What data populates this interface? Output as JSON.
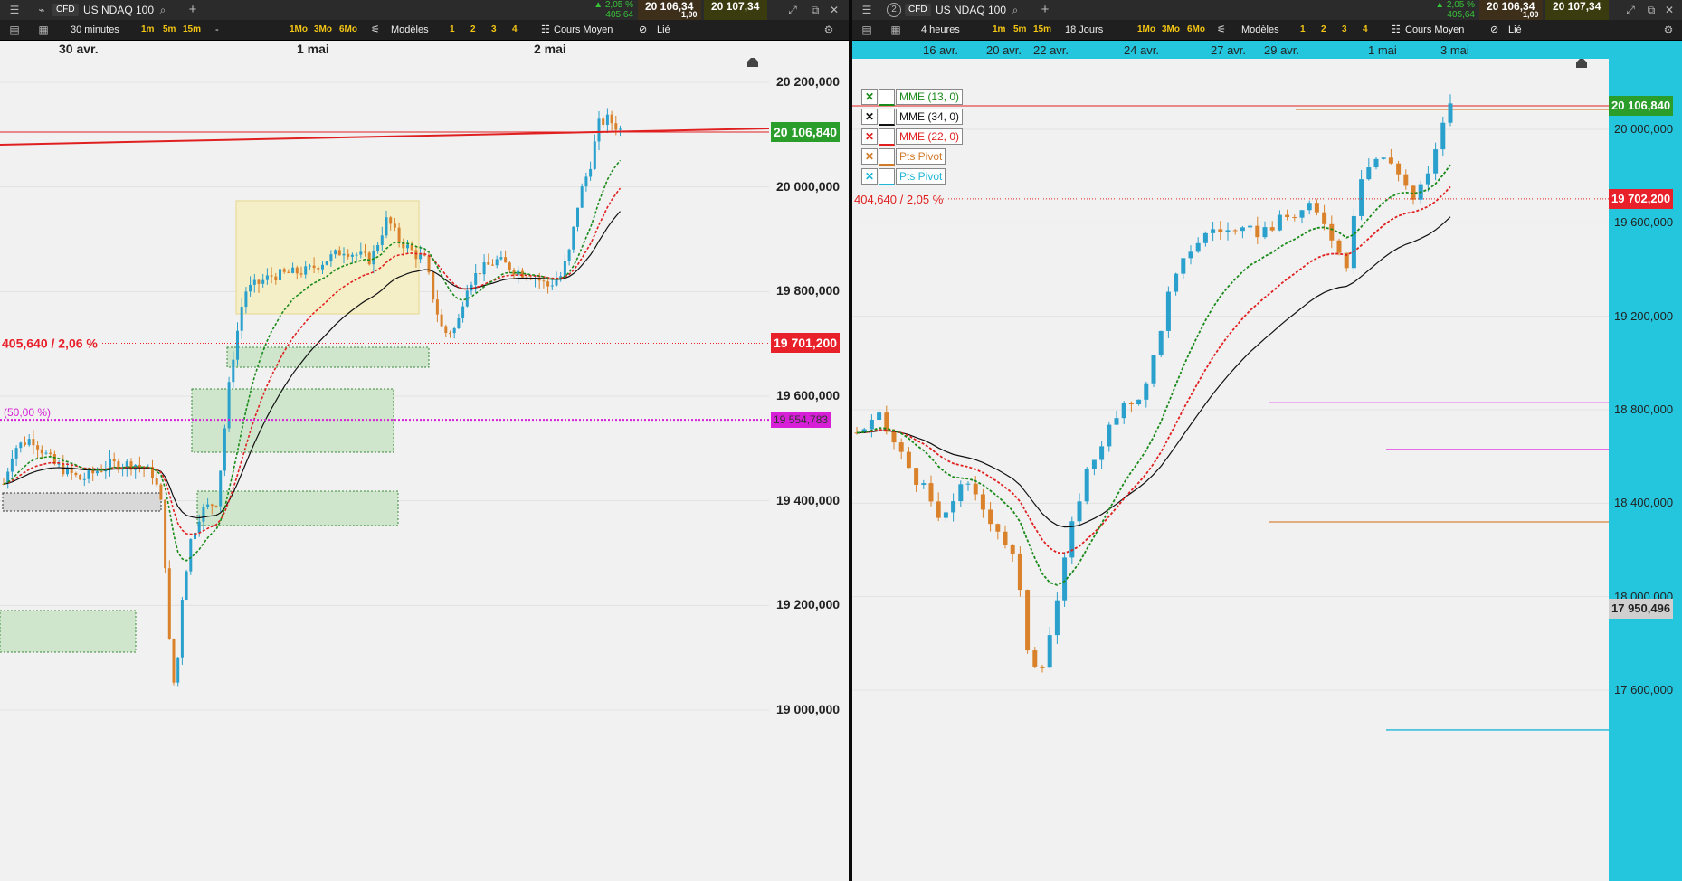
{
  "left": {
    "instrument": {
      "type_badge": "CFD",
      "name": "US NDAQ 100"
    },
    "quote": {
      "change_pct": "▲ 2,05 %",
      "change_val": "405,64",
      "bid": "20 106,34",
      "spread": "1,00",
      "ask": "20 107,34"
    },
    "toolbar": {
      "timeframe": "30 minutes",
      "intervals": [
        "1m",
        "5m",
        "15m"
      ],
      "dash": "-",
      "ranges": [
        "1Mo",
        "3Mo",
        "6Mo"
      ],
      "models": "Modèles",
      "numbers": [
        "1",
        "2",
        "3",
        "4"
      ],
      "avg": "Cours Moyen",
      "linked": "Lié"
    },
    "dates": [
      "30 avr.",
      "1 mai",
      "2 mai"
    ],
    "y_ticks": [
      "20 200,000",
      "20 000,000",
      "19 800,000",
      "19 600,000",
      "19 400,000",
      "19 200,000",
      "19 000,000"
    ],
    "current_price": "20 106,840",
    "ref_price": "19 701,200",
    "ref_change": "405,640 / 2,06 %",
    "fib_label": "(50,00 %)",
    "fib_price": "19 554,783",
    "colors": {
      "current": "#2a9d2a",
      "ref": "#e8202a",
      "fib": "#d61fd6"
    }
  },
  "right": {
    "window_number": "2",
    "instrument": {
      "type_badge": "CFD",
      "name": "US NDAQ 100"
    },
    "quote": {
      "change_pct": "▲ 2,05 %",
      "change_val": "405,64",
      "bid": "20 106,34",
      "spread": "1,00",
      "ask": "20 107,34"
    },
    "toolbar": {
      "timeframe": "4 heures",
      "intervals": [
        "1m",
        "5m",
        "15m"
      ],
      "range": "18 Jours",
      "ranges": [
        "1Mo",
        "3Mo",
        "6Mo"
      ],
      "models": "Modèles",
      "numbers": [
        "1",
        "2",
        "3",
        "4"
      ],
      "avg": "Cours Moyen",
      "linked": "Lié"
    },
    "dates": [
      "16 avr.",
      "20 avr.",
      "22 avr.",
      "24 avr.",
      "27 avr.",
      "29 avr.",
      "1 mai",
      "3 mai"
    ],
    "y_ticks": [
      "20 000,000",
      "19 600,000",
      "19 200,000",
      "18 800,000",
      "18 400,000",
      "18 000,000",
      "17 600,000"
    ],
    "current_price": "20 106,840",
    "ref_price": "19 702,200",
    "ref_change": "404,640 / 2,05 %",
    "pivot_price": "17 950,496",
    "legend": [
      {
        "label": "MME (13, 0)",
        "color": "#1a8a1a"
      },
      {
        "label": "MME (34, 0)",
        "color": "#111111"
      },
      {
        "label": "MME (22, 0)",
        "color": "#e02020"
      },
      {
        "label": "Pts Pivot",
        "color": "#d27a2a"
      },
      {
        "label": "Pts Pivot",
        "color": "#1fb6d8"
      }
    ]
  }
}
